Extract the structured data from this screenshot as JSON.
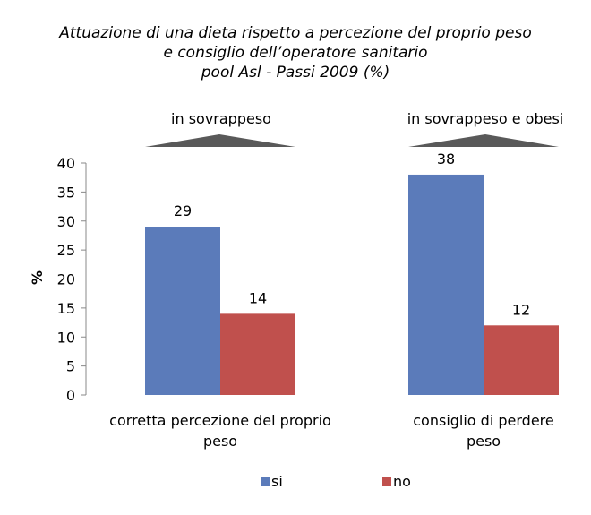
{
  "chart_data": {
    "type": "bar",
    "title_lines": [
      "Attuazione di una dieta rispetto a percezione del proprio peso",
      "e consiglio dell’operatore sanitario",
      "pool Asl - Passi 2009 (%)"
    ],
    "ylabel": "%",
    "ylim": [
      0,
      40
    ],
    "yticks": [
      0,
      5,
      10,
      15,
      20,
      25,
      30,
      35,
      40
    ],
    "grid": false,
    "legend_position": "bottom",
    "categories": [
      {
        "label_lines": [
          "corretta percezione del proprio",
          "peso"
        ],
        "group_label": "in sovrappeso"
      },
      {
        "label_lines": [
          "consiglio di perdere",
          "peso"
        ],
        "group_label": "in sovrappeso e obesi"
      }
    ],
    "series": [
      {
        "name": "si",
        "color": "#5B7BBA",
        "values": [
          29,
          38
        ]
      },
      {
        "name": "no",
        "color": "#C0504D",
        "values": [
          14,
          12
        ]
      }
    ],
    "data_labels": [
      [
        "29",
        "38"
      ],
      [
        "14",
        "12"
      ]
    ],
    "group_marker_color": "#595959"
  }
}
